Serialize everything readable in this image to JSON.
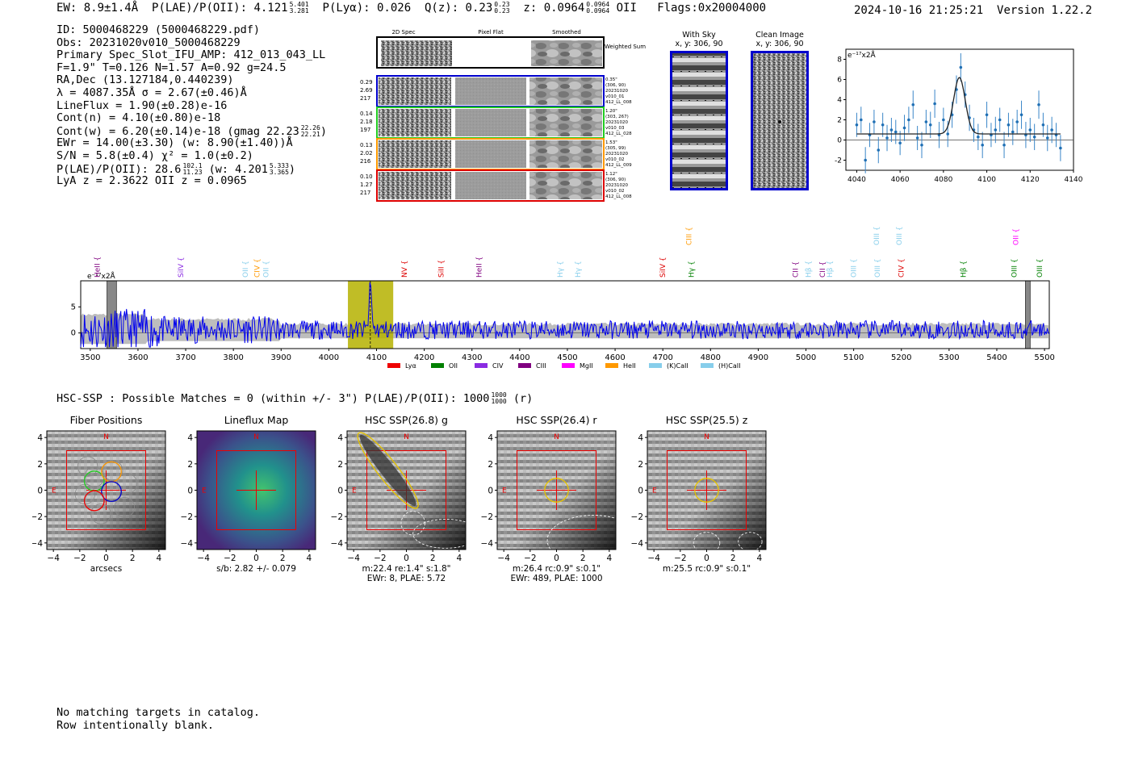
{
  "header": {
    "ew": "EW: 8.9±1.4Å",
    "plae": "P(LAE)/P(OII): 4.121",
    "plae_hi": "5.401",
    "plae_lo": "3.281",
    "plya": "P(Lyα): 0.026",
    "qz": "Q(z): 0.23",
    "qz_hi": "0.23",
    "qz_lo": "0.23",
    "z": "z: 0.0964",
    "z_hi": "0.0964",
    "z_lo": "0.0964",
    "z_line": "OII",
    "flags": "Flags:0x20004000",
    "date": "2024-10-16 21:25:21",
    "version": "Version 1.22.2"
  },
  "info": {
    "id": "ID: 5000468229 (5000468229.pdf)",
    "obs": "Obs: 20231020v010_5000468229",
    "slot": "Primary Spec_Slot_IFU_AMP: 412_013_043_LL",
    "fit": "F=1.9\"  T=0.126  N=1.57  A=0.92  g=24.5",
    "radec": "RA,Dec (13.127184,0.440239)",
    "lambda": "λ = 4087.35Å  σ = 2.67(±0.46)Å",
    "lineflux": "LineFlux = 1.90(±0.28)e-16",
    "contn": "Cont(n) = 4.10(±0.80)e-18",
    "contw": "Cont(w) = 6.20(±0.14)e-18 (gmag 22.23",
    "contw_hi": "22.26",
    "contw_lo": "22.21",
    "contw_end": ")",
    "ewr": "EWr = 14.00(±3.30) (w: 8.90(±1.40))Å",
    "sn": "S/N = 5.8(±0.4)  χ² = 1.0(±0.2)",
    "plae2": "P(LAE)/P(OII): 28.6",
    "plae2_hi": "102.1",
    "plae2_lo": "11.23",
    "plae2_w": "(w: 4.201",
    "plae2_w_hi": "5.333",
    "plae2_w_lo": "3.365",
    "plae2_end": ")",
    "lya": "LyA z = 2.3622  OII z = 0.0965"
  },
  "cutouts": {
    "headers": [
      "2D Spec",
      "Pixel Flat",
      "Smoothed"
    ],
    "weighted": "Weighted Sum",
    "rows": [
      {
        "left": [
          "0.29",
          "2.69",
          "217"
        ],
        "right": [
          "0.35\"",
          "(306, 90)",
          "20231020",
          "v010_01",
          "412_LL_008"
        ],
        "color": "#0000cc"
      },
      {
        "left": [
          "0.14",
          "2.18",
          "197"
        ],
        "right": [
          "1.20\"",
          "(303, 267)",
          "20231020",
          "v010_03",
          "412_LL_028"
        ],
        "color": "#22cc22"
      },
      {
        "left": [
          "0.13",
          "2.02",
          "216"
        ],
        "right": [
          "1.53\"",
          "(305, 99)",
          "20231020",
          "v010_02",
          "412_LL_009"
        ],
        "color": "#ff9900"
      },
      {
        "left": [
          "0.10",
          "1.27",
          "217"
        ],
        "right": [
          "1.12\"",
          "(306, 90)",
          "20231020",
          "v010_02",
          "412_LL_008"
        ],
        "color": "#dd0000"
      }
    ],
    "with_sky_title": "With Sky",
    "with_sky_sub": "x, y: 306, 90",
    "clean_title": "Clean Image",
    "clean_sub": "x, y: 306, 90"
  },
  "chart_data": [
    {
      "type": "scatter",
      "title": "",
      "unit_label": "e⁻¹⁷x2Å",
      "xlim": [
        4035,
        4140
      ],
      "ylim": [
        -3,
        9
      ],
      "xticks": [
        4040,
        4060,
        4080,
        4100,
        4120,
        4140
      ],
      "yticks": [
        -2,
        0,
        2,
        4,
        6,
        8
      ],
      "x": [
        4040,
        4042,
        4044,
        4046,
        4048,
        4050,
        4052,
        4054,
        4056,
        4058,
        4060,
        4062,
        4064,
        4066,
        4068,
        4070,
        4072,
        4074,
        4076,
        4078,
        4080,
        4082,
        4084,
        4086,
        4088,
        4090,
        4092,
        4094,
        4096,
        4098,
        4100,
        4102,
        4104,
        4106,
        4108,
        4110,
        4112,
        4114,
        4116,
        4118,
        4120,
        4122,
        4124,
        4126,
        4128,
        4130,
        4132,
        4134
      ],
      "y": [
        1.5,
        2.0,
        -2.0,
        0.5,
        1.8,
        -1.0,
        1.5,
        0.2,
        1.0,
        0.8,
        -0.3,
        1.2,
        2.0,
        3.5,
        0.2,
        -0.5,
        1.8,
        1.5,
        3.6,
        0.5,
        2.0,
        0.6,
        2.5,
        5.0,
        7.2,
        4.5,
        2.2,
        1.0,
        0.3,
        -0.5,
        2.5,
        0.5,
        1.0,
        2.0,
        -0.5,
        1.5,
        0.8,
        1.8,
        2.5,
        0.5,
        1.0,
        0.3,
        3.5,
        1.5,
        0.2,
        1.0,
        0.5,
        -0.8
      ],
      "err": [
        1.2,
        1.3,
        1.3,
        1.2,
        1.2,
        1.3,
        1.2,
        1.3,
        1.2,
        1.2,
        1.2,
        1.3,
        1.3,
        1.4,
        1.2,
        1.3,
        1.2,
        1.3,
        1.4,
        1.3,
        1.2,
        1.3,
        1.3,
        1.4,
        1.4,
        1.3,
        1.3,
        1.2,
        1.3,
        1.3,
        1.3,
        1.2,
        1.3,
        1.2,
        1.3,
        1.2,
        1.3,
        1.2,
        1.4,
        1.3,
        1.2,
        1.3,
        1.4,
        1.2,
        1.3,
        1.3,
        1.2,
        1.3
      ],
      "fit": {
        "center": 4087.35,
        "sigma": 2.67,
        "amp": 5.6,
        "base": 0.6
      }
    },
    {
      "type": "line",
      "title": "",
      "unit_label": "e⁻¹⁷x2Å",
      "xlim": [
        3480,
        5510
      ],
      "ylim": [
        -3,
        10
      ],
      "xticks": [
        3500,
        3600,
        3700,
        3800,
        3900,
        4000,
        4100,
        4200,
        4300,
        4400,
        4500,
        4600,
        4700,
        4800,
        4900,
        5000,
        5100,
        5200,
        5300,
        5400,
        5500
      ],
      "yticks": [
        0,
        5
      ],
      "highlight": [
        4040,
        4135
      ],
      "line_marker": 4087,
      "masked": [
        [
          3535,
          3555
        ],
        [
          5460,
          5470
        ]
      ],
      "lines": [
        {
          "label": "HeII",
          "x": 3515,
          "color": "#800080",
          "tier": 2
        },
        {
          "label": "SiIV",
          "x": 3690,
          "color": "#8a2be2",
          "tier": 2
        },
        {
          "label": "OII",
          "x": 3825,
          "color": "#87ceeb",
          "tier": 2
        },
        {
          "label": "CIV",
          "x": 3850,
          "color": "#ff9900",
          "tier": 2
        },
        {
          "label": "OII",
          "x": 3868,
          "color": "#87ceeb",
          "tier": 2
        },
        {
          "label": "NV",
          "x": 4158,
          "color": "#dd0000",
          "tier": 2
        },
        {
          "label": "SiII",
          "x": 4235,
          "color": "#dd0000",
          "tier": 2
        },
        {
          "label": "HeII",
          "x": 4315,
          "color": "#800080",
          "tier": 2
        },
        {
          "label": "Hγ",
          "x": 4485,
          "color": "#87ceeb",
          "tier": 2
        },
        {
          "label": "Hγ",
          "x": 4522,
          "color": "#87ceeb",
          "tier": 2
        },
        {
          "label": "SiIV",
          "x": 4700,
          "color": "#dd0000",
          "tier": 2
        },
        {
          "label": "CIII",
          "x": 4755,
          "color": "#ff9900",
          "tier": 0
        },
        {
          "label": "Hγ",
          "x": 4760,
          "color": "#008000",
          "tier": 2
        },
        {
          "label": "CII",
          "x": 4978,
          "color": "#800080",
          "tier": 2
        },
        {
          "label": "Hβ",
          "x": 5005,
          "color": "#87ceeb",
          "tier": 2
        },
        {
          "label": "CII",
          "x": 5035,
          "color": "#800080",
          "tier": 2
        },
        {
          "label": "Hβ",
          "x": 5050,
          "color": "#87ceeb",
          "tier": 2
        },
        {
          "label": "OIII",
          "x": 5100,
          "color": "#87ceeb",
          "tier": 2
        },
        {
          "label": "OIII",
          "x": 5148,
          "color": "#87ceeb",
          "tier": 0
        },
        {
          "label": "OIII",
          "x": 5150,
          "color": "#87ceeb",
          "tier": 2
        },
        {
          "label": "OIII",
          "x": 5195,
          "color": "#87ceeb",
          "tier": 0
        },
        {
          "label": "CIV",
          "x": 5200,
          "color": "#dd0000",
          "tier": 2
        },
        {
          "label": "Hβ",
          "x": 5330,
          "color": "#008000",
          "tier": 2
        },
        {
          "label": "OII",
          "x": 5440,
          "color": "#ff00ff",
          "tier": 0
        },
        {
          "label": "OIII",
          "x": 5436,
          "color": "#008000",
          "tier": 2
        },
        {
          "label": "OIII",
          "x": 5490,
          "color": "#008000",
          "tier": 2
        }
      ],
      "legend": [
        {
          "label": "Lyα",
          "color": "#ee0000"
        },
        {
          "label": "OII",
          "color": "#008000"
        },
        {
          "label": "CIV",
          "color": "#8a2be2"
        },
        {
          "label": "CIII",
          "color": "#800080"
        },
        {
          "label": "MgII",
          "color": "#ff00ff"
        },
        {
          "label": "HeII",
          "color": "#ff9900"
        },
        {
          "label": "(K)CaII",
          "color": "#87ceeb"
        },
        {
          "label": "(H)CaII",
          "color": "#87ceeb"
        }
      ]
    }
  ],
  "hsc": {
    "line": "HSC-SSP : Possible Matches = 0 (within +/- 3\")  P(LAE)/P(OII): 1000",
    "hi": "1000",
    "lo": "1000",
    "end": "(r)"
  },
  "panels": [
    {
      "title": "Fiber Positions",
      "sub": [
        "arcsecs"
      ],
      "kind": "fiber"
    },
    {
      "title": "Lineflux Map",
      "sub": [
        "s/b: 2.82 +/- 0.079"
      ],
      "kind": "flux"
    },
    {
      "title": "HSC SSP(26.8) g",
      "sub": [
        "m:22.4  re:1.4\"  s:1.8\"",
        "EWr: 8, PLAE: 5.72"
      ],
      "kind": "g"
    },
    {
      "title": "HSC SSP(26.4) r",
      "sub": [
        "m:26.4 rc:0.9\"  s:0.1\"",
        "EWr: 489, PLAE: 1000"
      ],
      "kind": "r"
    },
    {
      "title": "HSC SSP(25.5) z",
      "sub": [
        "m:25.5 rc:0.9\"  s:0.1\""
      ],
      "kind": "z"
    }
  ],
  "panel_axis": {
    "ticks": [
      "−4",
      "−2",
      "0",
      "2",
      "4"
    ],
    "north": "N",
    "east": "E"
  },
  "footer": [
    "No matching targets in catalog.",
    "Row intentionally blank."
  ]
}
